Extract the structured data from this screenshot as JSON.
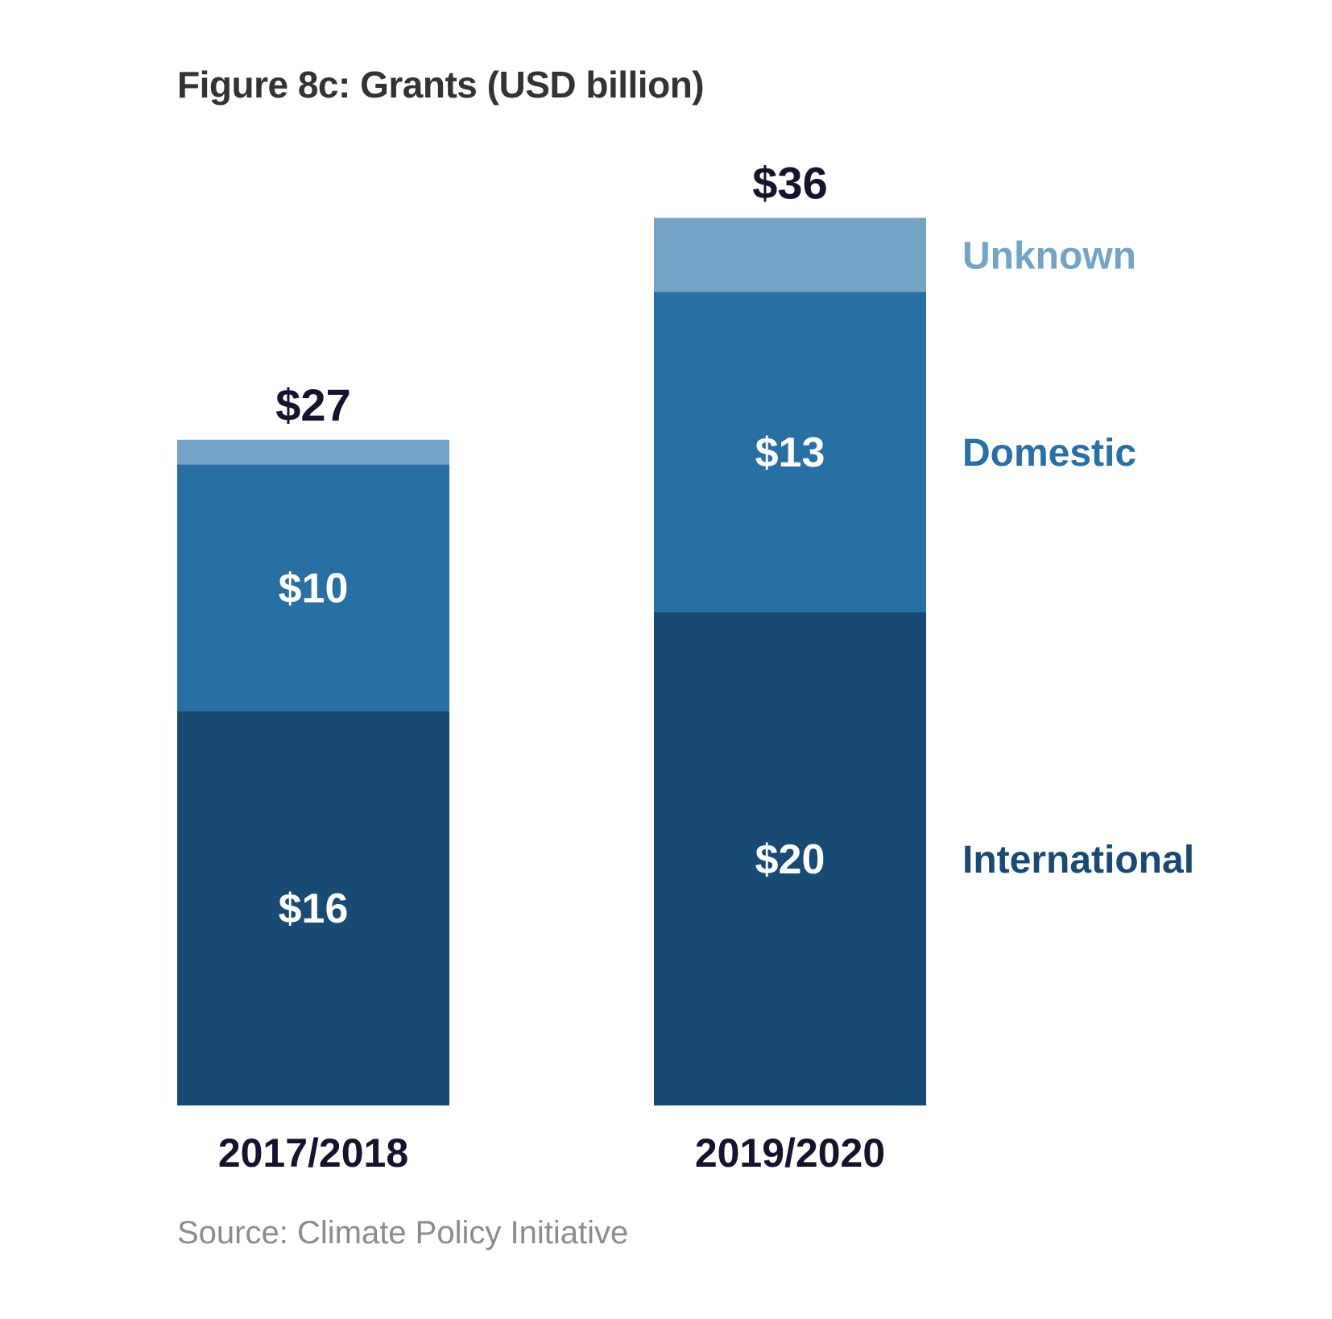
{
  "chart_data": {
    "type": "bar",
    "stacked": true,
    "title": "Figure 8c: Grants (USD billion)",
    "categories": [
      "2017/2018",
      "2019/2020"
    ],
    "series": [
      {
        "name": "International",
        "values": [
          16,
          20
        ],
        "labels": [
          "$16",
          "$20"
        ],
        "color": "#184a73"
      },
      {
        "name": "Domestic",
        "values": [
          10,
          13
        ],
        "labels": [
          "$10",
          "$13"
        ],
        "color": "#286fa3"
      },
      {
        "name": "Unknown",
        "values": [
          1,
          3
        ],
        "labels": [
          "",
          ""
        ],
        "color": "#74a3c6"
      }
    ],
    "totals": [
      27,
      36
    ],
    "total_labels": [
      "$27",
      "$36"
    ],
    "legend_placement": "right",
    "grid": false,
    "ylim": [
      0,
      36
    ],
    "source": "Source: Climate Policy Initiative"
  }
}
